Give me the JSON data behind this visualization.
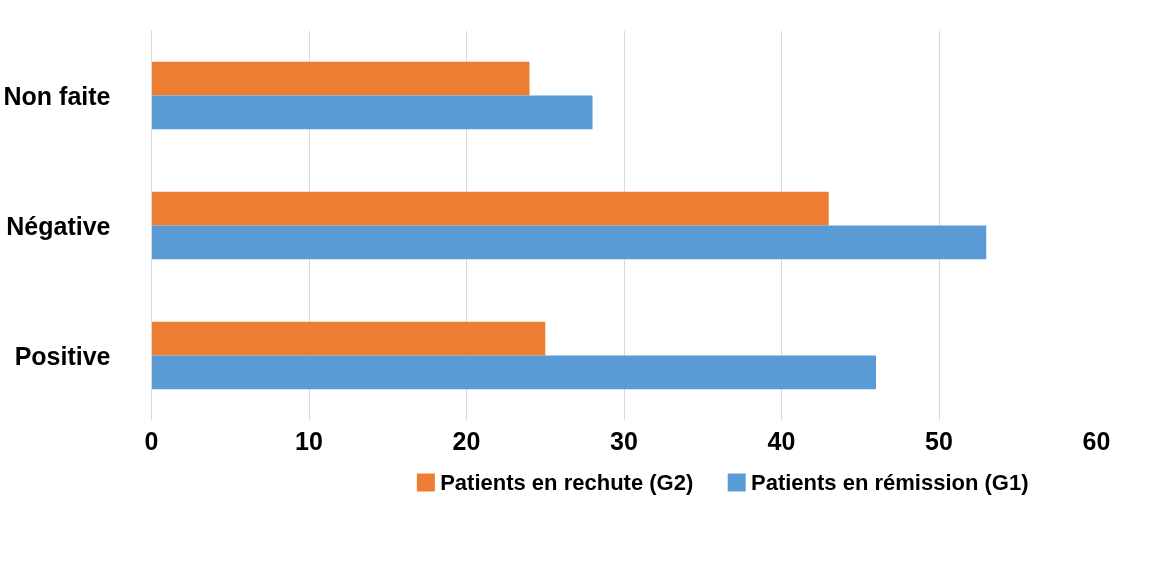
{
  "chart_data": {
    "type": "bar",
    "orientation": "horizontal",
    "categories": [
      "Non faite",
      "Négative",
      "Positive"
    ],
    "series": [
      {
        "name": "Patients en rechute (G2)",
        "color": "#ed7d31",
        "values": [
          24,
          43,
          25
        ]
      },
      {
        "name": "Patients en rémission (G1)",
        "color": "#5b9bd5",
        "values": [
          28,
          53,
          46
        ]
      }
    ],
    "xlim": [
      0,
      60
    ],
    "xticks": [
      0,
      10,
      20,
      30,
      40,
      50,
      60
    ],
    "grid": "x",
    "legend": "bottom"
  }
}
